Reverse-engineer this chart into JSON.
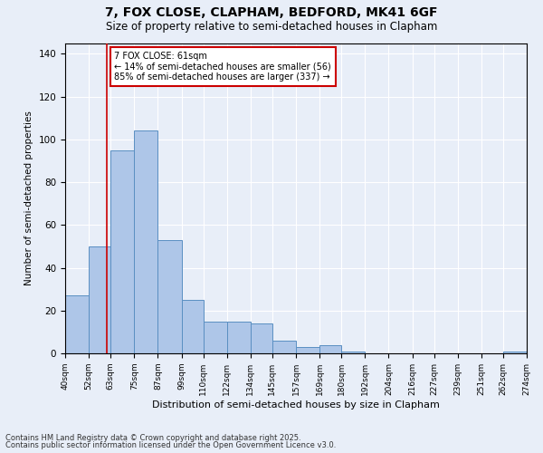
{
  "title": "7, FOX CLOSE, CLAPHAM, BEDFORD, MK41 6GF",
  "subtitle": "Size of property relative to semi-detached houses in Clapham",
  "xlabel": "Distribution of semi-detached houses by size in Clapham",
  "ylabel": "Number of semi-detached properties",
  "footnote1": "Contains HM Land Registry data © Crown copyright and database right 2025.",
  "footnote2": "Contains public sector information licensed under the Open Government Licence v3.0.",
  "property_label": "7 FOX CLOSE: 61sqm",
  "smaller_pct": "14% of semi-detached houses are smaller (56)",
  "larger_pct": "85% of semi-detached houses are larger (337)",
  "property_size_sqm": 61,
  "bin_edges": [
    40,
    52,
    63,
    75,
    87,
    99,
    110,
    122,
    134,
    145,
    157,
    169,
    180,
    192,
    204,
    216,
    227,
    239,
    251,
    262,
    274
  ],
  "bin_counts": [
    27,
    50,
    95,
    104,
    53,
    25,
    15,
    15,
    14,
    6,
    3,
    4,
    1,
    0,
    0,
    0,
    0,
    0,
    0,
    1
  ],
  "bar_color": "#aec6e8",
  "bar_edge_color": "#5a8fc2",
  "vline_color": "#cc0000",
  "background_color": "#e8eef8",
  "annotation_box_color": "#cc0000",
  "ylim": [
    0,
    145
  ],
  "yticks": [
    0,
    20,
    40,
    60,
    80,
    100,
    120,
    140
  ]
}
